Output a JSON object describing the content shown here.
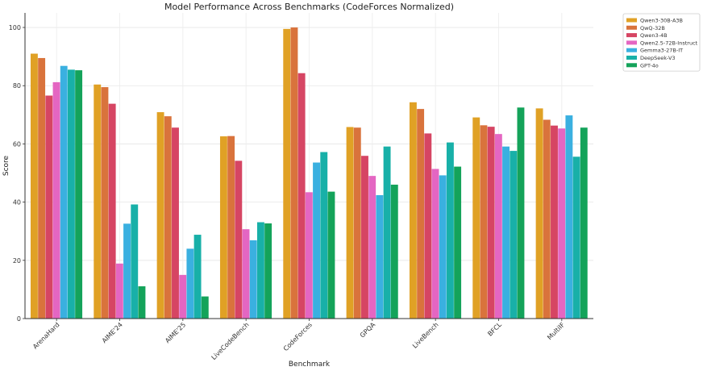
{
  "chart_data": {
    "type": "bar",
    "title": "Model Performance Across Benchmarks (CodeForces Normalized)",
    "xlabel": "Benchmark",
    "ylabel": "Score",
    "ylim": [
      0,
      105
    ],
    "yticks": [
      0,
      20,
      40,
      60,
      80,
      100
    ],
    "grid": true,
    "legend_position": "top-right outside",
    "categories": [
      "ArenaHard",
      "AIME'24",
      "AIME'25",
      "LiveCodeBench",
      "CodeForces",
      "GPQA",
      "LiveBench",
      "BFCL",
      "MultiIF"
    ],
    "series": [
      {
        "name": "Qwen3-30B-A3B",
        "color": "#e0a125",
        "values": [
          91,
          80.4,
          70.9,
          62.6,
          99.5,
          65.8,
          74.3,
          69.1,
          72.2
        ]
      },
      {
        "name": "QwQ-32B",
        "color": "#d9733c",
        "values": [
          89.5,
          79.5,
          69.5,
          62.7,
          100,
          65.6,
          72.0,
          66.4,
          68.3
        ]
      },
      {
        "name": "Qwen3-4B",
        "color": "#d64563",
        "values": [
          76.6,
          73.8,
          65.6,
          54.2,
          84.3,
          55.9,
          63.6,
          65.9,
          66.3
        ]
      },
      {
        "name": "Qwen2.5-72B-Instruct",
        "color": "#e466c2",
        "values": [
          81.2,
          18.9,
          15.0,
          30.7,
          43.4,
          49.0,
          51.4,
          63.4,
          65.3
        ]
      },
      {
        "name": "Gemma3-27B-IT",
        "color": "#3ab0e0",
        "values": [
          86.8,
          32.6,
          24.0,
          26.9,
          53.6,
          42.4,
          49.2,
          59.1,
          69.8
        ]
      },
      {
        "name": "DeepSeek-V3",
        "color": "#18b0a8",
        "values": [
          85.5,
          39.2,
          28.8,
          33.1,
          57.2,
          59.1,
          60.5,
          57.6,
          55.6
        ]
      },
      {
        "name": "GPT-4o",
        "color": "#14a35a",
        "values": [
          85.3,
          11.1,
          7.6,
          32.7,
          43.6,
          46.0,
          52.2,
          72.5,
          65.6
        ]
      }
    ]
  }
}
